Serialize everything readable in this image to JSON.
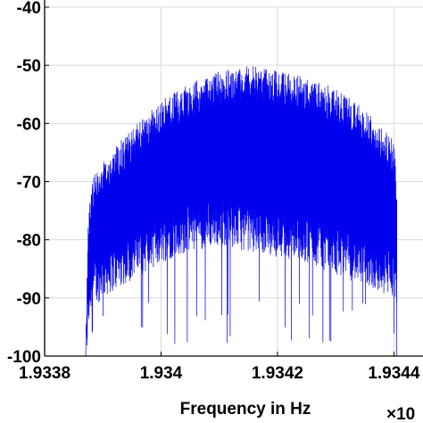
{
  "chart_data": {
    "type": "line",
    "title": "",
    "xlabel": "Frequency in Hz",
    "ylabel": "",
    "x_exponent_label": "×10",
    "xlim": [
      1.9338,
      1.93445
    ],
    "ylim": [
      -100,
      -40
    ],
    "xticks": [
      1.9338,
      1.934,
      1.9342,
      1.9344
    ],
    "xtick_labels": [
      "1.9338",
      "1.934",
      "1.9342",
      "1.9344"
    ],
    "yticks": [
      -100,
      -90,
      -80,
      -70,
      -60,
      -50,
      -40
    ],
    "ytick_labels": [
      "-100",
      "-90",
      "-80",
      "-70",
      "-60",
      "-50",
      "-40"
    ],
    "grid": true,
    "colors": {
      "series": "#0000ee",
      "grid": "#d9d9d9",
      "axes": "#000000"
    },
    "series": [
      {
        "x": [
          1.9338,
          1.93387,
          1.933875,
          1.93388,
          1.9339,
          1.93395,
          1.934,
          1.93405,
          1.9341,
          1.93415,
          1.9342,
          1.93425,
          1.9343,
          1.93435,
          1.9344,
          1.934405,
          1.93441,
          1.93445
        ],
        "y_upper": [
          -100,
          -100,
          -75,
          -70,
          -66,
          -61,
          -56,
          -53,
          -51,
          -50,
          -51,
          -52,
          -54,
          -57,
          -63,
          -70,
          -100,
          -100
        ],
        "y_lower": [
          -100,
          -100,
          -92,
          -88,
          -86,
          -83,
          -80,
          -78,
          -77,
          -78,
          -79,
          -80,
          -82,
          -84,
          -86,
          -90,
          -100,
          -100
        ]
      }
    ]
  }
}
